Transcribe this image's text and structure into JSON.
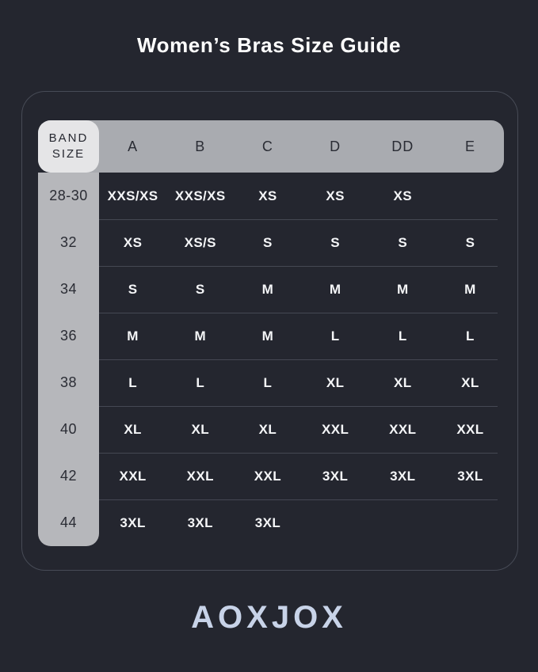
{
  "header": {
    "title": "Women’s Bras Size Guide"
  },
  "footer": {
    "brand": "AOXJOX"
  },
  "colors": {
    "background": "#24262f",
    "header_bar": "#a9abb0",
    "band_column": "#b6b7bb",
    "corner_cell": "#e5e5e7",
    "frame_border": "#474b56",
    "divider": "#454853",
    "cell_text": "#f5f6f8",
    "dark_text": "#2a2c34",
    "title_text": "#ffffff",
    "logo_text": "#c8d3e8"
  },
  "chart_data": {
    "type": "table",
    "title": "Women’s Bras Size Guide",
    "corner_label": "BAND SIZE",
    "cup_sizes": [
      "A",
      "B",
      "C",
      "D",
      "DD",
      "E"
    ],
    "rows": [
      {
        "band_size": "28-30",
        "values": [
          "XXS/XS",
          "XXS/XS",
          "XS",
          "XS",
          "XS",
          ""
        ]
      },
      {
        "band_size": "32",
        "values": [
          "XS",
          "XS/S",
          "S",
          "S",
          "S",
          "S"
        ]
      },
      {
        "band_size": "34",
        "values": [
          "S",
          "S",
          "M",
          "M",
          "M",
          "M"
        ]
      },
      {
        "band_size": "36",
        "values": [
          "M",
          "M",
          "M",
          "L",
          "L",
          "L"
        ]
      },
      {
        "band_size": "38",
        "values": [
          "L",
          "L",
          "L",
          "XL",
          "XL",
          "XL"
        ]
      },
      {
        "band_size": "40",
        "values": [
          "XL",
          "XL",
          "XL",
          "XXL",
          "XXL",
          "XXL"
        ]
      },
      {
        "band_size": "42",
        "values": [
          "XXL",
          "XXL",
          "XXL",
          "3XL",
          "3XL",
          "3XL"
        ]
      },
      {
        "band_size": "44",
        "values": [
          "3XL",
          "3XL",
          "3XL",
          "",
          "",
          ""
        ]
      }
    ]
  }
}
